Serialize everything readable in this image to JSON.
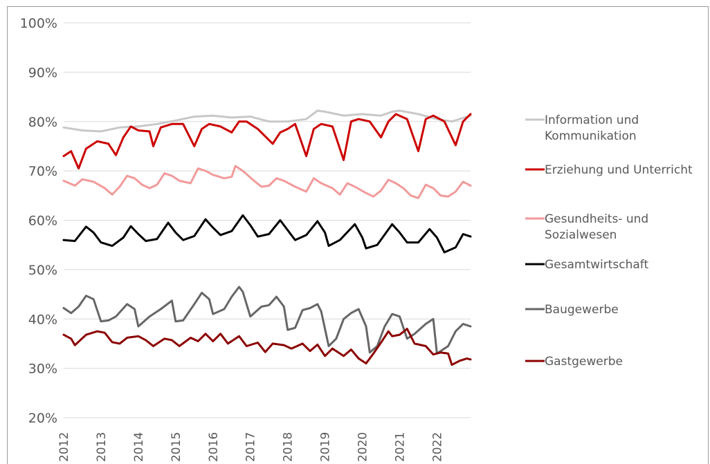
{
  "chart_data": {
    "type": "line",
    "title": "",
    "xlabel": "",
    "ylabel": "",
    "ylim": [
      0.2,
      1.0
    ],
    "y_ticks": [
      "20%",
      "30%",
      "40%",
      "50%",
      "60%",
      "70%",
      "80%",
      "90%",
      "100%"
    ],
    "x_ticks": [
      "2012",
      "2013",
      "2014",
      "2015",
      "2016",
      "2017",
      "2018",
      "2019",
      "2020",
      "2021",
      "2022"
    ],
    "x_range": [
      2012.0,
      2022.9
    ],
    "grid": "horizontal",
    "legend_position": "right",
    "series": [
      {
        "name_lines": [
          "Information und",
          "Kommunikation"
        ],
        "color": "#c8c8c8",
        "points": [
          [
            2012.0,
            0.788
          ],
          [
            2012.5,
            0.782
          ],
          [
            2013.0,
            0.78
          ],
          [
            2013.5,
            0.788
          ],
          [
            2014.0,
            0.79
          ],
          [
            2014.5,
            0.795
          ],
          [
            2015.0,
            0.802
          ],
          [
            2015.5,
            0.81
          ],
          [
            2016.0,
            0.812
          ],
          [
            2016.5,
            0.808
          ],
          [
            2017.0,
            0.81
          ],
          [
            2017.5,
            0.8
          ],
          [
            2018.0,
            0.8
          ],
          [
            2018.5,
            0.805
          ],
          [
            2018.8,
            0.822
          ],
          [
            2019.0,
            0.82
          ],
          [
            2019.5,
            0.812
          ],
          [
            2020.0,
            0.815
          ],
          [
            2020.5,
            0.812
          ],
          [
            2020.8,
            0.82
          ],
          [
            2021.0,
            0.822
          ],
          [
            2021.5,
            0.815
          ],
          [
            2022.0,
            0.805
          ],
          [
            2022.4,
            0.8
          ],
          [
            2022.9,
            0.812
          ]
        ]
      },
      {
        "name_lines": [
          "Erziehung und Unterricht"
        ],
        "color": "#cc0000",
        "points": [
          [
            2012.0,
            0.73
          ],
          [
            2012.2,
            0.74
          ],
          [
            2012.4,
            0.705
          ],
          [
            2012.6,
            0.745
          ],
          [
            2012.9,
            0.76
          ],
          [
            2013.2,
            0.755
          ],
          [
            2013.4,
            0.732
          ],
          [
            2013.6,
            0.768
          ],
          [
            2013.8,
            0.79
          ],
          [
            2014.0,
            0.782
          ],
          [
            2014.3,
            0.78
          ],
          [
            2014.4,
            0.75
          ],
          [
            2014.6,
            0.788
          ],
          [
            2014.9,
            0.795
          ],
          [
            2015.2,
            0.795
          ],
          [
            2015.5,
            0.75
          ],
          [
            2015.7,
            0.785
          ],
          [
            2015.9,
            0.795
          ],
          [
            2016.2,
            0.79
          ],
          [
            2016.5,
            0.778
          ],
          [
            2016.7,
            0.8
          ],
          [
            2016.9,
            0.8
          ],
          [
            2017.2,
            0.785
          ],
          [
            2017.4,
            0.77
          ],
          [
            2017.6,
            0.755
          ],
          [
            2017.8,
            0.778
          ],
          [
            2018.0,
            0.785
          ],
          [
            2018.2,
            0.795
          ],
          [
            2018.5,
            0.73
          ],
          [
            2018.7,
            0.785
          ],
          [
            2018.9,
            0.795
          ],
          [
            2019.2,
            0.79
          ],
          [
            2019.5,
            0.722
          ],
          [
            2019.7,
            0.8
          ],
          [
            2019.9,
            0.805
          ],
          [
            2020.2,
            0.8
          ],
          [
            2020.5,
            0.768
          ],
          [
            2020.7,
            0.8
          ],
          [
            2020.9,
            0.815
          ],
          [
            2021.2,
            0.805
          ],
          [
            2021.5,
            0.74
          ],
          [
            2021.7,
            0.805
          ],
          [
            2021.9,
            0.812
          ],
          [
            2022.2,
            0.8
          ],
          [
            2022.5,
            0.752
          ],
          [
            2022.7,
            0.8
          ],
          [
            2022.9,
            0.815
          ]
        ]
      },
      {
        "name_lines": [
          "Gesundheits- und",
          "Sozialwesen"
        ],
        "color": "#f29a9a",
        "points": [
          [
            2012.0,
            0.68
          ],
          [
            2012.3,
            0.67
          ],
          [
            2012.5,
            0.683
          ],
          [
            2012.8,
            0.678
          ],
          [
            2013.1,
            0.665
          ],
          [
            2013.3,
            0.652
          ],
          [
            2013.5,
            0.668
          ],
          [
            2013.7,
            0.69
          ],
          [
            2013.9,
            0.685
          ],
          [
            2014.1,
            0.672
          ],
          [
            2014.3,
            0.665
          ],
          [
            2014.5,
            0.672
          ],
          [
            2014.7,
            0.695
          ],
          [
            2014.9,
            0.69
          ],
          [
            2015.1,
            0.68
          ],
          [
            2015.4,
            0.675
          ],
          [
            2015.6,
            0.705
          ],
          [
            2015.8,
            0.7
          ],
          [
            2016.0,
            0.692
          ],
          [
            2016.3,
            0.685
          ],
          [
            2016.5,
            0.688
          ],
          [
            2016.6,
            0.71
          ],
          [
            2016.8,
            0.7
          ],
          [
            2017.1,
            0.68
          ],
          [
            2017.3,
            0.668
          ],
          [
            2017.5,
            0.67
          ],
          [
            2017.7,
            0.685
          ],
          [
            2017.9,
            0.68
          ],
          [
            2018.2,
            0.668
          ],
          [
            2018.5,
            0.658
          ],
          [
            2018.7,
            0.685
          ],
          [
            2018.9,
            0.675
          ],
          [
            2019.2,
            0.665
          ],
          [
            2019.4,
            0.652
          ],
          [
            2019.6,
            0.675
          ],
          [
            2019.8,
            0.668
          ],
          [
            2020.1,
            0.655
          ],
          [
            2020.3,
            0.648
          ],
          [
            2020.5,
            0.66
          ],
          [
            2020.7,
            0.682
          ],
          [
            2020.9,
            0.675
          ],
          [
            2021.1,
            0.665
          ],
          [
            2021.3,
            0.65
          ],
          [
            2021.5,
            0.645
          ],
          [
            2021.7,
            0.672
          ],
          [
            2021.9,
            0.665
          ],
          [
            2022.1,
            0.65
          ],
          [
            2022.3,
            0.648
          ],
          [
            2022.5,
            0.658
          ],
          [
            2022.7,
            0.678
          ],
          [
            2022.9,
            0.67
          ]
        ]
      },
      {
        "name_lines": [
          "Gesamtwirtschaft"
        ],
        "color": "#000000",
        "points": [
          [
            2012.0,
            0.56
          ],
          [
            2012.3,
            0.558
          ],
          [
            2012.6,
            0.587
          ],
          [
            2012.8,
            0.575
          ],
          [
            2013.0,
            0.555
          ],
          [
            2013.3,
            0.548
          ],
          [
            2013.6,
            0.565
          ],
          [
            2013.8,
            0.588
          ],
          [
            2014.0,
            0.572
          ],
          [
            2014.2,
            0.558
          ],
          [
            2014.5,
            0.562
          ],
          [
            2014.8,
            0.595
          ],
          [
            2015.0,
            0.575
          ],
          [
            2015.2,
            0.56
          ],
          [
            2015.5,
            0.568
          ],
          [
            2015.8,
            0.602
          ],
          [
            2016.0,
            0.585
          ],
          [
            2016.2,
            0.57
          ],
          [
            2016.5,
            0.578
          ],
          [
            2016.8,
            0.61
          ],
          [
            2017.0,
            0.59
          ],
          [
            2017.2,
            0.567
          ],
          [
            2017.5,
            0.572
          ],
          [
            2017.8,
            0.6
          ],
          [
            2018.0,
            0.58
          ],
          [
            2018.2,
            0.56
          ],
          [
            2018.5,
            0.57
          ],
          [
            2018.8,
            0.598
          ],
          [
            2019.0,
            0.575
          ],
          [
            2019.1,
            0.548
          ],
          [
            2019.4,
            0.56
          ],
          [
            2019.8,
            0.592
          ],
          [
            2020.0,
            0.565
          ],
          [
            2020.1,
            0.543
          ],
          [
            2020.4,
            0.55
          ],
          [
            2020.8,
            0.592
          ],
          [
            2021.0,
            0.575
          ],
          [
            2021.2,
            0.555
          ],
          [
            2021.5,
            0.555
          ],
          [
            2021.8,
            0.582
          ],
          [
            2022.0,
            0.565
          ],
          [
            2022.2,
            0.535
          ],
          [
            2022.5,
            0.545
          ],
          [
            2022.7,
            0.572
          ],
          [
            2022.9,
            0.567
          ]
        ]
      },
      {
        "name_lines": [
          "Baugewerbe"
        ],
        "color": "#666666",
        "points": [
          [
            2012.0,
            0.422
          ],
          [
            2012.2,
            0.412
          ],
          [
            2012.4,
            0.425
          ],
          [
            2012.6,
            0.447
          ],
          [
            2012.8,
            0.44
          ],
          [
            2013.0,
            0.395
          ],
          [
            2013.2,
            0.397
          ],
          [
            2013.4,
            0.405
          ],
          [
            2013.7,
            0.43
          ],
          [
            2013.9,
            0.42
          ],
          [
            2014.0,
            0.385
          ],
          [
            2014.3,
            0.405
          ],
          [
            2014.6,
            0.42
          ],
          [
            2014.9,
            0.437
          ],
          [
            2015.0,
            0.395
          ],
          [
            2015.2,
            0.397
          ],
          [
            2015.5,
            0.43
          ],
          [
            2015.7,
            0.453
          ],
          [
            2015.9,
            0.44
          ],
          [
            2016.0,
            0.41
          ],
          [
            2016.3,
            0.42
          ],
          [
            2016.5,
            0.445
          ],
          [
            2016.7,
            0.465
          ],
          [
            2016.8,
            0.455
          ],
          [
            2017.0,
            0.405
          ],
          [
            2017.3,
            0.425
          ],
          [
            2017.5,
            0.428
          ],
          [
            2017.7,
            0.445
          ],
          [
            2017.9,
            0.425
          ],
          [
            2018.0,
            0.378
          ],
          [
            2018.2,
            0.382
          ],
          [
            2018.4,
            0.418
          ],
          [
            2018.6,
            0.422
          ],
          [
            2018.8,
            0.43
          ],
          [
            2018.9,
            0.415
          ],
          [
            2019.1,
            0.345
          ],
          [
            2019.3,
            0.36
          ],
          [
            2019.5,
            0.4
          ],
          [
            2019.7,
            0.412
          ],
          [
            2019.9,
            0.42
          ],
          [
            2020.1,
            0.385
          ],
          [
            2020.2,
            0.332
          ],
          [
            2020.4,
            0.345
          ],
          [
            2020.6,
            0.385
          ],
          [
            2020.8,
            0.41
          ],
          [
            2021.0,
            0.405
          ],
          [
            2021.2,
            0.36
          ],
          [
            2021.4,
            0.37
          ],
          [
            2021.7,
            0.39
          ],
          [
            2021.9,
            0.4
          ],
          [
            2022.0,
            0.33
          ],
          [
            2022.3,
            0.345
          ],
          [
            2022.5,
            0.375
          ],
          [
            2022.7,
            0.39
          ],
          [
            2022.9,
            0.385
          ]
        ]
      },
      {
        "name_lines": [
          "Gastgewerbe"
        ],
        "color": "#8b0000",
        "points": [
          [
            2012.0,
            0.368
          ],
          [
            2012.2,
            0.36
          ],
          [
            2012.3,
            0.347
          ],
          [
            2012.6,
            0.368
          ],
          [
            2012.9,
            0.375
          ],
          [
            2013.1,
            0.372
          ],
          [
            2013.3,
            0.353
          ],
          [
            2013.5,
            0.35
          ],
          [
            2013.7,
            0.362
          ],
          [
            2014.0,
            0.365
          ],
          [
            2014.2,
            0.357
          ],
          [
            2014.4,
            0.345
          ],
          [
            2014.7,
            0.36
          ],
          [
            2014.9,
            0.357
          ],
          [
            2015.1,
            0.345
          ],
          [
            2015.4,
            0.362
          ],
          [
            2015.6,
            0.355
          ],
          [
            2015.8,
            0.37
          ],
          [
            2016.0,
            0.355
          ],
          [
            2016.2,
            0.37
          ],
          [
            2016.4,
            0.35
          ],
          [
            2016.7,
            0.365
          ],
          [
            2016.9,
            0.345
          ],
          [
            2017.2,
            0.352
          ],
          [
            2017.4,
            0.333
          ],
          [
            2017.6,
            0.35
          ],
          [
            2017.9,
            0.347
          ],
          [
            2018.1,
            0.34
          ],
          [
            2018.4,
            0.35
          ],
          [
            2018.6,
            0.335
          ],
          [
            2018.8,
            0.348
          ],
          [
            2019.0,
            0.325
          ],
          [
            2019.2,
            0.34
          ],
          [
            2019.5,
            0.325
          ],
          [
            2019.7,
            0.338
          ],
          [
            2019.9,
            0.32
          ],
          [
            2020.1,
            0.31
          ],
          [
            2020.3,
            0.33
          ],
          [
            2020.5,
            0.352
          ],
          [
            2020.7,
            0.375
          ],
          [
            2020.8,
            0.365
          ],
          [
            2021.0,
            0.368
          ],
          [
            2021.2,
            0.38
          ],
          [
            2021.4,
            0.35
          ],
          [
            2021.7,
            0.345
          ],
          [
            2021.9,
            0.328
          ],
          [
            2022.1,
            0.332
          ],
          [
            2022.3,
            0.33
          ],
          [
            2022.4,
            0.307
          ],
          [
            2022.6,
            0.315
          ],
          [
            2022.8,
            0.32
          ],
          [
            2022.9,
            0.318
          ]
        ]
      }
    ]
  }
}
